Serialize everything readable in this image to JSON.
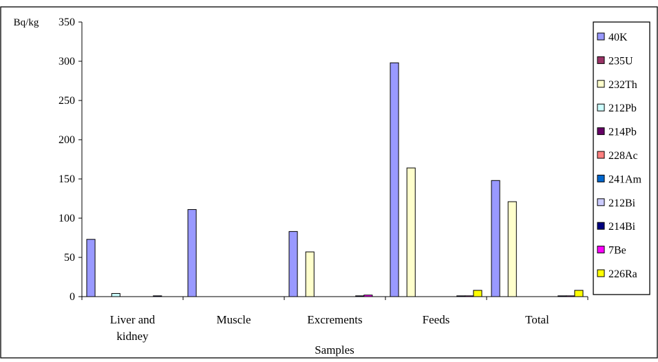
{
  "chart_data": {
    "type": "bar",
    "xlabel": "Samples",
    "ylabel": "Bq/kg",
    "ylim": [
      0,
      350
    ],
    "yticks": [
      0,
      50,
      100,
      150,
      200,
      250,
      300,
      350
    ],
    "grid": false,
    "legend_position": "right",
    "categories": [
      [
        "Liver and",
        "kidney"
      ],
      [
        "Muscle"
      ],
      [
        "Excrements"
      ],
      [
        "Feeds"
      ],
      [
        "Total"
      ]
    ],
    "series": [
      {
        "name": "40K",
        "color": "#9999ff",
        "values": [
          73,
          111,
          83,
          298,
          148
        ]
      },
      {
        "name": "235U",
        "color": "#993366",
        "values": [
          0,
          0,
          0,
          0,
          0
        ]
      },
      {
        "name": "232Th",
        "color": "#ffffcc",
        "values": [
          0,
          0,
          57,
          164,
          121
        ]
      },
      {
        "name": "212Pb",
        "color": "#ccffff",
        "values": [
          4,
          0,
          0,
          0,
          0
        ]
      },
      {
        "name": "214Pb",
        "color": "#660066",
        "values": [
          0,
          0,
          0,
          0,
          0
        ]
      },
      {
        "name": "228Ac",
        "color": "#ff8080",
        "values": [
          0,
          0,
          0,
          0,
          0
        ]
      },
      {
        "name": "241Am",
        "color": "#0066cc",
        "values": [
          0,
          0,
          0,
          0,
          0
        ]
      },
      {
        "name": "212Bi",
        "color": "#ccccff",
        "values": [
          0,
          0,
          0,
          0,
          0
        ]
      },
      {
        "name": "214Bi",
        "color": "#000080",
        "values": [
          1,
          0,
          1,
          1,
          1
        ]
      },
      {
        "name": "7Be",
        "color": "#ff00ff",
        "values": [
          0,
          0,
          2,
          1,
          1
        ]
      },
      {
        "name": "226Ra",
        "color": "#ffff00",
        "values": [
          0,
          0,
          0,
          8,
          8
        ]
      }
    ]
  }
}
